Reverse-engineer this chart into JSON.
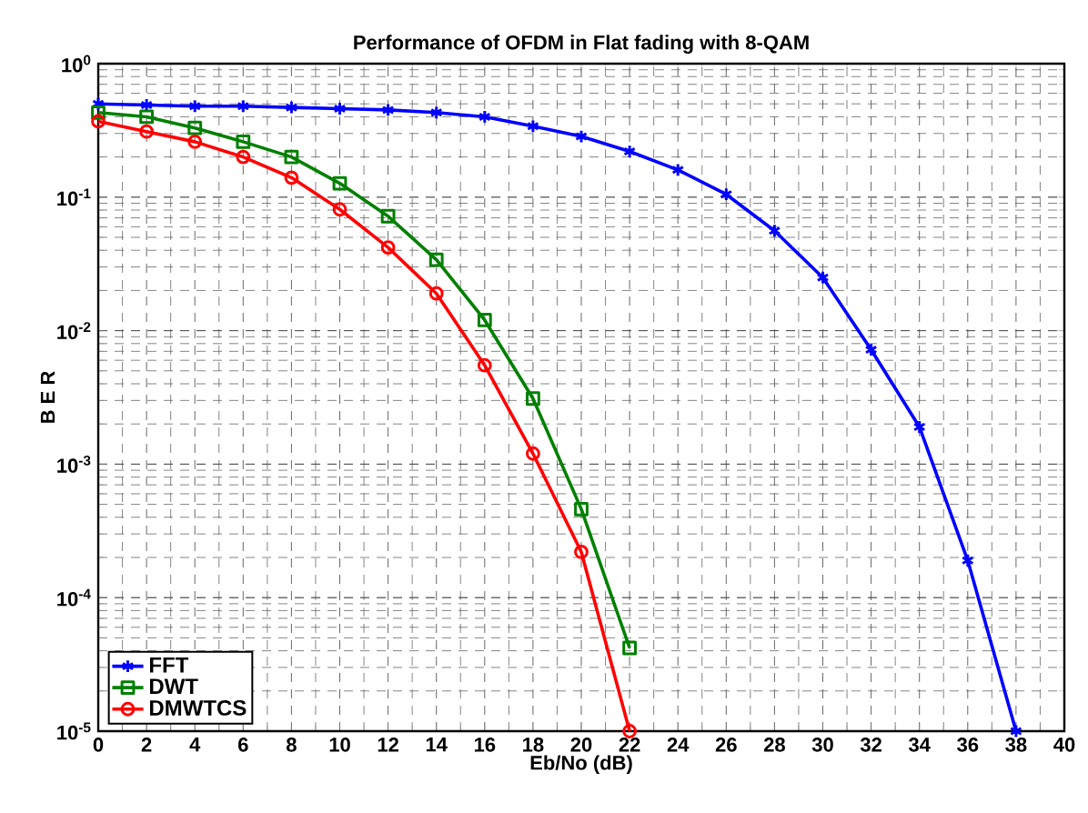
{
  "chart_data": {
    "type": "line",
    "title": "Performance of OFDM in Flat fading with 8-QAM",
    "xlabel": "Eb/No (dB)",
    "ylabel": "B E R",
    "log": "y",
    "grid": true,
    "legend": "bottom left",
    "line_style": "solid",
    "xlim": [
      0,
      40
    ],
    "xticks": [
      0,
      2,
      4,
      6,
      8,
      10,
      12,
      14,
      16,
      18,
      20,
      22,
      24,
      26,
      28,
      30,
      32,
      34,
      36,
      38,
      40
    ],
    "ylim": [
      1e-05,
      1
    ],
    "yticks": [
      {
        "value": 1e-05,
        "label": "10$^{-5}$"
      },
      {
        "value": 0.0001,
        "label": "10$^{-4}$"
      },
      {
        "value": 0.001,
        "label": "10$^{-3}$"
      },
      {
        "value": 0.01,
        "label": "10$^{-2}$"
      },
      {
        "value": 0.1,
        "label": "10$^{-1}$"
      },
      {
        "value": 1,
        "label": "10$^{0}$"
      }
    ],
    "series": [
      {
        "name": "FFT",
        "color": "#0000ff",
        "marker": "cross",
        "x": [
          0,
          2,
          4,
          6,
          8,
          10,
          12,
          14,
          16,
          18,
          20,
          22,
          24,
          26,
          28,
          30,
          32,
          34,
          36,
          38
        ],
        "values": [
          0.5,
          0.49,
          0.48,
          0.48,
          0.47,
          0.46,
          0.45,
          0.43,
          0.4,
          0.34,
          0.285,
          0.22,
          0.16,
          0.105,
          0.056,
          0.025,
          0.0072,
          0.0019,
          0.00019,
          1e-05
        ]
      },
      {
        "name": "DWT",
        "color": "#008000",
        "marker": "square",
        "x": [
          0,
          2,
          4,
          6,
          8,
          10,
          12,
          14,
          16,
          18,
          20,
          22
        ],
        "values": [
          0.43,
          0.4,
          0.33,
          0.26,
          0.2,
          0.127,
          0.072,
          0.034,
          0.012,
          0.0031,
          0.00046,
          4.2e-05
        ]
      },
      {
        "name": "DMWTCS",
        "color": "#ff0000",
        "marker": "circle",
        "x": [
          0,
          2,
          4,
          6,
          8,
          10,
          12,
          14,
          16,
          18,
          20,
          22
        ],
        "values": [
          0.37,
          0.31,
          0.26,
          0.2,
          0.14,
          0.081,
          0.042,
          0.019,
          0.0055,
          0.0012,
          0.00022,
          1e-05
        ]
      }
    ]
  }
}
